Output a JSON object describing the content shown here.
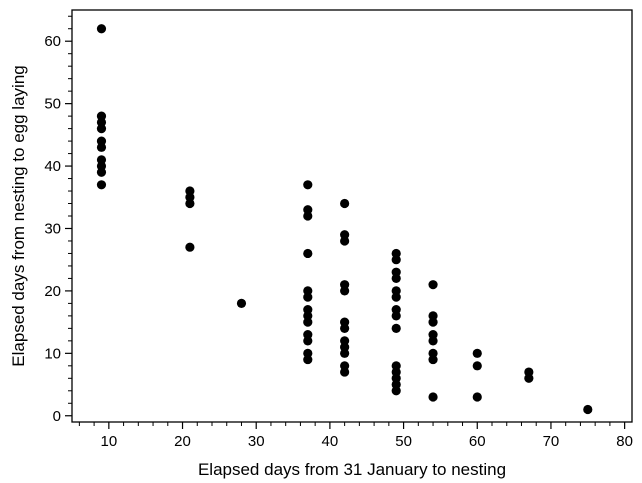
{
  "chart_data": {
    "type": "scatter",
    "title": "",
    "xlabel": "Elapsed days from 31 January to nesting",
    "ylabel": "Elapsed days from nesting to egg laying",
    "xlim": [
      5,
      81
    ],
    "ylim": [
      -1,
      65
    ],
    "xticks": [
      10,
      20,
      30,
      40,
      50,
      60,
      70,
      80
    ],
    "xtick_labels": [
      "10",
      "20",
      "30",
      "40",
      "50",
      "60",
      "70",
      "80"
    ],
    "yticks": [
      0,
      10,
      20,
      30,
      40,
      50,
      60
    ],
    "ytick_labels": [
      "0",
      "10",
      "20",
      "30",
      "40",
      "50",
      "60"
    ],
    "grid": false,
    "points": [
      [
        9,
        62
      ],
      [
        9,
        48
      ],
      [
        9,
        47
      ],
      [
        9,
        46
      ],
      [
        9,
        44
      ],
      [
        9,
        43
      ],
      [
        9,
        41
      ],
      [
        9,
        40
      ],
      [
        9,
        39
      ],
      [
        9,
        37
      ],
      [
        21,
        36
      ],
      [
        21,
        35
      ],
      [
        21,
        34
      ],
      [
        21,
        27
      ],
      [
        28,
        18
      ],
      [
        37,
        37
      ],
      [
        37,
        33
      ],
      [
        37,
        32
      ],
      [
        37,
        26
      ],
      [
        37,
        20
      ],
      [
        37,
        19
      ],
      [
        37,
        17
      ],
      [
        37,
        16
      ],
      [
        37,
        15
      ],
      [
        37,
        13
      ],
      [
        37,
        12
      ],
      [
        37,
        10
      ],
      [
        37,
        9
      ],
      [
        42,
        34
      ],
      [
        42,
        29
      ],
      [
        42,
        28
      ],
      [
        42,
        21
      ],
      [
        42,
        20
      ],
      [
        42,
        15
      ],
      [
        42,
        14
      ],
      [
        42,
        12
      ],
      [
        42,
        11
      ],
      [
        42,
        10
      ],
      [
        42,
        8
      ],
      [
        42,
        7
      ],
      [
        49,
        26
      ],
      [
        49,
        25
      ],
      [
        49,
        23
      ],
      [
        49,
        22
      ],
      [
        49,
        20
      ],
      [
        49,
        19
      ],
      [
        49,
        17
      ],
      [
        49,
        16
      ],
      [
        49,
        14
      ],
      [
        49,
        8
      ],
      [
        49,
        7
      ],
      [
        49,
        6
      ],
      [
        49,
        5
      ],
      [
        49,
        4
      ],
      [
        54,
        21
      ],
      [
        54,
        16
      ],
      [
        54,
        15
      ],
      [
        54,
        13
      ],
      [
        54,
        12
      ],
      [
        54,
        10
      ],
      [
        54,
        9
      ],
      [
        54,
        3
      ],
      [
        60,
        10
      ],
      [
        60,
        8
      ],
      [
        60,
        3
      ],
      [
        67,
        7
      ],
      [
        67,
        6
      ],
      [
        75,
        1
      ]
    ]
  }
}
